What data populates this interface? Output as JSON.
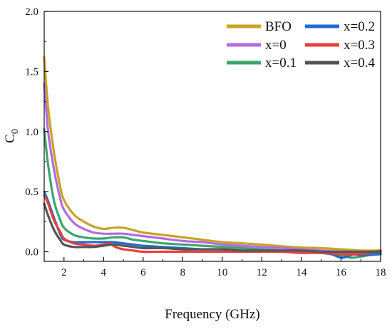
{
  "chart_data": {
    "type": "line",
    "xlabel": "Frequency (GHz)",
    "ylabel": "C",
    "ylabel_subscript": "0",
    "xlim": [
      1,
      18
    ],
    "ylim": [
      -0.08,
      2.0
    ],
    "x_ticks": [
      2,
      4,
      6,
      8,
      10,
      12,
      14,
      16,
      18
    ],
    "y_ticks": [
      0.0,
      0.5,
      1.0,
      1.5,
      2.0
    ],
    "x_tick_labels": [
      "2",
      "4",
      "6",
      "8",
      "10",
      "12",
      "14",
      "16",
      "18"
    ],
    "y_tick_labels": [
      "0.0",
      "0.5",
      "1.0",
      "1.5",
      "2.0"
    ],
    "grid": false,
    "legend_position": "top-right",
    "series": [
      {
        "name": "BFO",
        "color": "#c9a227",
        "x": [
          1.0,
          1.2,
          1.5,
          1.8,
          2.0,
          2.5,
          3.0,
          3.5,
          4.0,
          4.5,
          5.0,
          5.5,
          6.0,
          7.0,
          8.0,
          9.0,
          10.0,
          11.0,
          12.0,
          13.0,
          14.0,
          15.0,
          16.0,
          17.0,
          18.0
        ],
        "y": [
          1.62,
          1.2,
          0.82,
          0.55,
          0.43,
          0.31,
          0.25,
          0.21,
          0.19,
          0.2,
          0.2,
          0.18,
          0.16,
          0.14,
          0.12,
          0.1,
          0.08,
          0.07,
          0.06,
          0.045,
          0.035,
          0.03,
          0.02,
          0.01,
          0.01
        ]
      },
      {
        "name": "x=0",
        "color": "#b36ae2",
        "x": [
          1.0,
          1.2,
          1.5,
          1.8,
          2.0,
          2.5,
          3.0,
          3.5,
          4.0,
          4.5,
          5.0,
          5.5,
          6.0,
          7.0,
          8.0,
          9.0,
          10.0,
          11.0,
          12.0,
          13.0,
          14.0,
          15.0,
          16.0,
          17.0,
          18.0
        ],
        "y": [
          1.4,
          1.0,
          0.68,
          0.45,
          0.35,
          0.24,
          0.19,
          0.16,
          0.15,
          0.15,
          0.15,
          0.14,
          0.13,
          0.11,
          0.09,
          0.08,
          0.06,
          0.05,
          0.04,
          0.03,
          0.02,
          0.01,
          0.0,
          -0.01,
          -0.01
        ]
      },
      {
        "name": "x=0.1",
        "color": "#3aa66a",
        "x": [
          1.0,
          1.2,
          1.5,
          1.8,
          2.0,
          2.5,
          3.0,
          3.5,
          4.0,
          4.5,
          5.0,
          5.5,
          6.0,
          7.0,
          8.0,
          9.0,
          10.0,
          11.0,
          12.0,
          13.0,
          14.0,
          15.0,
          16.0,
          16.5,
          17.0,
          18.0
        ],
        "y": [
          1.02,
          0.72,
          0.42,
          0.27,
          0.2,
          0.14,
          0.12,
          0.11,
          0.11,
          0.12,
          0.12,
          0.1,
          0.09,
          0.07,
          0.06,
          0.05,
          0.04,
          0.03,
          0.02,
          0.01,
          0.0,
          -0.01,
          -0.03,
          -0.05,
          -0.04,
          -0.01
        ]
      },
      {
        "name": "x=0.2",
        "color": "#1f6bd1",
        "x": [
          1.0,
          1.2,
          1.5,
          1.8,
          2.0,
          2.5,
          3.0,
          3.5,
          4.0,
          4.5,
          5.0,
          5.5,
          6.0,
          7.0,
          8.0,
          9.0,
          10.0,
          11.0,
          12.0,
          13.0,
          14.0,
          15.0,
          15.5,
          16.0,
          16.3,
          16.7,
          17.0,
          18.0
        ],
        "y": [
          0.5,
          0.42,
          0.28,
          0.15,
          0.1,
          0.08,
          0.08,
          0.08,
          0.08,
          0.08,
          0.07,
          0.06,
          0.05,
          0.04,
          0.03,
          0.02,
          0.02,
          0.01,
          0.01,
          0.0,
          0.0,
          -0.01,
          -0.02,
          -0.05,
          -0.04,
          -0.02,
          -0.03,
          -0.02
        ]
      },
      {
        "name": "x=0.3",
        "color": "#e8403a",
        "x": [
          1.0,
          1.2,
          1.5,
          1.8,
          2.0,
          2.5,
          3.0,
          3.5,
          4.0,
          4.3,
          4.6,
          5.0,
          5.5,
          6.0,
          7.0,
          8.0,
          9.0,
          10.0,
          11.0,
          12.0,
          13.0,
          14.0,
          15.0,
          16.0,
          17.0,
          18.0
        ],
        "y": [
          0.47,
          0.4,
          0.26,
          0.17,
          0.11,
          0.07,
          0.06,
          0.05,
          0.06,
          0.07,
          0.04,
          0.02,
          0.01,
          0.0,
          0.0,
          0.0,
          0.0,
          0.0,
          0.0,
          0.0,
          0.0,
          -0.01,
          -0.01,
          -0.02,
          -0.02,
          0.01
        ]
      },
      {
        "name": "x=0.4",
        "color": "#555555",
        "x": [
          1.0,
          1.2,
          1.5,
          1.8,
          2.0,
          2.5,
          3.0,
          3.5,
          4.0,
          4.5,
          5.0,
          5.5,
          6.0,
          7.0,
          8.0,
          9.0,
          10.0,
          11.0,
          12.0,
          13.0,
          14.0,
          15.0,
          16.0,
          17.0,
          18.0
        ],
        "y": [
          0.4,
          0.3,
          0.18,
          0.1,
          0.06,
          0.04,
          0.04,
          0.04,
          0.05,
          0.06,
          0.05,
          0.04,
          0.03,
          0.03,
          0.02,
          0.02,
          0.02,
          0.01,
          0.01,
          0.01,
          0.01,
          0.0,
          0.0,
          0.0,
          0.0
        ]
      }
    ]
  }
}
